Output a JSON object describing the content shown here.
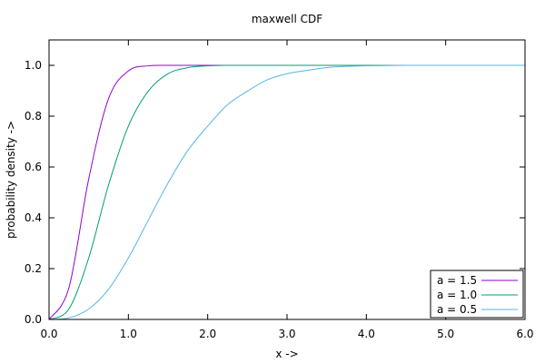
{
  "chart_data": {
    "type": "line",
    "title": "maxwell CDF",
    "xlabel": "x ->",
    "ylabel": "probability density ->",
    "xlim": [
      0,
      6
    ],
    "ylim": [
      0,
      1.1
    ],
    "x_ticks": [
      0,
      1,
      2,
      3,
      4,
      5,
      6
    ],
    "x_tick_labels": [
      "0.0",
      "1.0",
      "2.0",
      "3.0",
      "4.0",
      "5.0",
      "6.0"
    ],
    "y_ticks": [
      0,
      0.2,
      0.4,
      0.6,
      0.8,
      1.0
    ],
    "y_tick_labels": [
      "0.0",
      "0.2",
      "0.4",
      "0.6",
      "0.8",
      "1.0"
    ],
    "grid": false,
    "legend_position": "bottom-right",
    "x": [
      0.0,
      0.25,
      0.5,
      0.75,
      1.0,
      1.25,
      1.5,
      1.75,
      2.0,
      2.25,
      2.5,
      2.75,
      3.0,
      3.25,
      3.5,
      3.75,
      4.0,
      4.25,
      4.5,
      4.75,
      5.0,
      5.25,
      5.5,
      5.75,
      6.0
    ],
    "series": [
      {
        "name": "a = 1.5",
        "color": "#9400d3",
        "values": [
          0.0,
          0.124,
          0.553,
          0.869,
          0.978,
          0.998,
          1.0,
          1.0,
          1.0,
          1.0,
          1.0,
          1.0,
          1.0,
          1.0,
          1.0,
          1.0,
          1.0,
          1.0,
          1.0,
          1.0,
          1.0,
          1.0,
          1.0,
          1.0,
          1.0
        ]
      },
      {
        "name": "a = 1.0",
        "color": "#009e73",
        "values": [
          0.0,
          0.041,
          0.242,
          0.529,
          0.761,
          0.898,
          0.967,
          0.991,
          0.998,
          1.0,
          1.0,
          1.0,
          1.0,
          1.0,
          1.0,
          1.0,
          1.0,
          1.0,
          1.0,
          1.0,
          1.0,
          1.0,
          1.0,
          1.0,
          1.0
        ]
      },
      {
        "name": "a = 0.5",
        "color": "#56b4e9",
        "values": [
          0.0,
          0.006,
          0.041,
          0.119,
          0.242,
          0.39,
          0.537,
          0.665,
          0.761,
          0.845,
          0.898,
          0.943,
          0.967,
          0.98,
          0.991,
          0.996,
          0.998,
          0.999,
          1.0,
          1.0,
          1.0,
          1.0,
          1.0,
          1.0,
          1.0
        ]
      }
    ]
  }
}
